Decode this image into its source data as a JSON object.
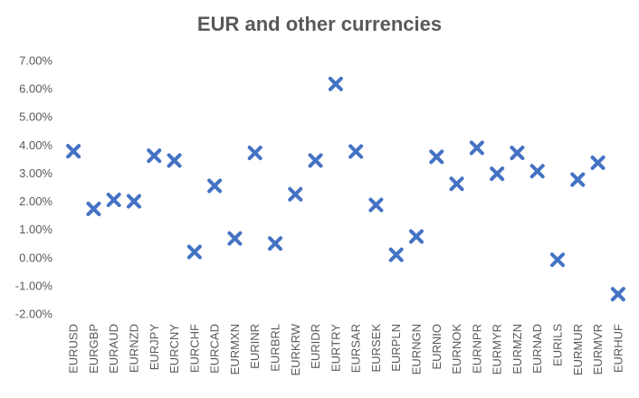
{
  "chart_data": {
    "type": "scatter",
    "title": "EUR and other currencies",
    "xlabel": "",
    "ylabel": "",
    "ylim": [
      -0.02,
      0.07
    ],
    "y_ticks": [
      -0.02,
      -0.01,
      0.0,
      0.01,
      0.02,
      0.03,
      0.04,
      0.05,
      0.06,
      0.07
    ],
    "y_tick_labels": [
      "-2.00%",
      "-1.00%",
      "0.00%",
      "1.00%",
      "2.00%",
      "3.00%",
      "4.00%",
      "5.00%",
      "6.00%",
      "7.00%"
    ],
    "y_format": "percent",
    "grid": false,
    "legend": "none",
    "marker": "x",
    "marker_color": "#4472C4",
    "categories": [
      "EURUSD",
      "EURGBP",
      "EURAUD",
      "EURNZD",
      "EURJPY",
      "EURCNY",
      "EURCHF",
      "EURCAD",
      "EURMXN",
      "EURINR",
      "EURBRL",
      "EURKRW",
      "EURIDR",
      "EURTRY",
      "EURSAR",
      "EURSEK",
      "EURPLN",
      "EURNGN",
      "EURNIO",
      "EURNOK",
      "EURNPR",
      "EURMYR",
      "EURMZN",
      "EURNAD",
      "EURILS",
      "EURMUR",
      "EURMVR",
      "EURHUF"
    ],
    "values": [
      0.0378,
      0.0173,
      0.0205,
      0.02,
      0.0362,
      0.0345,
      0.002,
      0.0255,
      0.0068,
      0.0372,
      0.005,
      0.0225,
      0.0345,
      0.0617,
      0.0377,
      0.0187,
      0.001,
      0.0075,
      0.0358,
      0.0262,
      0.039,
      0.0298,
      0.0372,
      0.0307,
      -0.0008,
      0.0277,
      0.0337,
      -0.013
    ]
  }
}
